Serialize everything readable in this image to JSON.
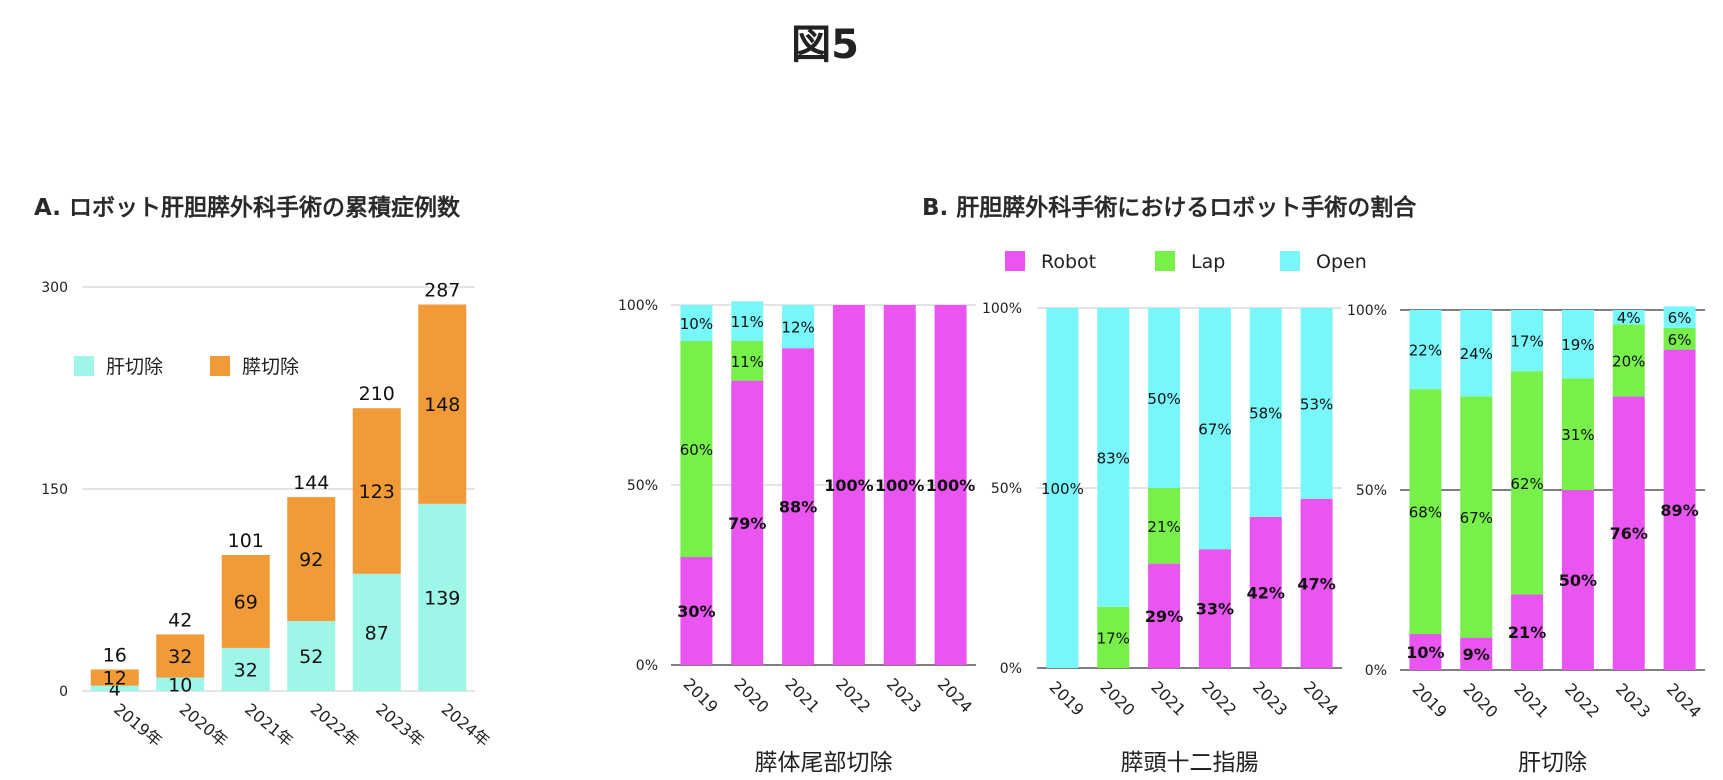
{
  "figure_title": "図5",
  "panel_a_title": "A. ロボット肝胆膵外科手術の累積症例数",
  "panel_b_title": "B. 肝胆膵外科手術におけるロボット手術の割合",
  "colors": {
    "liver": "#9ef6e8",
    "pancreas": "#f09a38",
    "robot": "#ea55f2",
    "lap": "#77f04a",
    "open": "#78f7fa"
  },
  "chart_data": [
    {
      "type": "bar",
      "stacked": true,
      "categories": [
        "2019年",
        "2020年",
        "2021年",
        "2022年",
        "2023年",
        "2024年"
      ],
      "series": [
        {
          "name": "肝切除",
          "values": [
            4,
            10,
            32,
            52,
            87,
            139
          ]
        },
        {
          "name": "膵切除",
          "values": [
            12,
            32,
            69,
            92,
            123,
            148
          ]
        }
      ],
      "totals": [
        16,
        42,
        101,
        144,
        210,
        287
      ],
      "yticks": [
        "0",
        "150",
        "300"
      ],
      "ylim": [
        0,
        300
      ],
      "legend_position": "top-left",
      "grid": true
    },
    {
      "type": "bar",
      "stacked": true,
      "title": "膵体尾部切除",
      "categories": [
        "2019",
        "2020",
        "2021",
        "2022",
        "2023",
        "2024"
      ],
      "series": [
        {
          "name": "Robot",
          "values": [
            30,
            79,
            88,
            100,
            100,
            100
          ],
          "labels": [
            "30%",
            "79%",
            "88%",
            "100%",
            "100%",
            "100%"
          ]
        },
        {
          "name": "Lap",
          "values": [
            60,
            11,
            0,
            0,
            0,
            0
          ],
          "labels": [
            "60%",
            "11%",
            "",
            "",
            "",
            ""
          ]
        },
        {
          "name": "Open",
          "values": [
            10,
            11,
            12,
            0,
            0,
            0
          ],
          "labels": [
            "10%",
            "11%",
            "12%",
            "",
            "",
            ""
          ]
        }
      ],
      "yticks": [
        "0%",
        "50%",
        "100%"
      ],
      "ylim": [
        0,
        100
      ]
    },
    {
      "type": "bar",
      "stacked": true,
      "title": "膵頭十二指腸",
      "categories": [
        "2019",
        "2020",
        "2021",
        "2022",
        "2023",
        "2024"
      ],
      "series": [
        {
          "name": "Robot",
          "values": [
            0,
            0,
            29,
            33,
            42,
            47
          ],
          "labels": [
            "",
            "",
            "29%",
            "33%",
            "42%",
            "47%"
          ]
        },
        {
          "name": "Lap",
          "values": [
            0,
            17,
            21,
            0,
            0,
            0
          ],
          "labels": [
            "",
            "17%",
            "21%",
            "",
            "",
            ""
          ]
        },
        {
          "name": "Open",
          "values": [
            100,
            83,
            50,
            67,
            58,
            53
          ],
          "labels": [
            "100%",
            "83%",
            "50%",
            "67%",
            "58%",
            "53%"
          ]
        }
      ],
      "yticks": [
        "0%",
        "50%",
        "100%"
      ],
      "ylim": [
        0,
        100
      ]
    },
    {
      "type": "bar",
      "stacked": true,
      "title": "肝切除",
      "categories": [
        "2019",
        "2020",
        "2021",
        "2022",
        "2023",
        "2024"
      ],
      "series": [
        {
          "name": "Robot",
          "values": [
            10,
            9,
            21,
            50,
            76,
            89
          ],
          "labels": [
            "10%",
            "9%",
            "21%",
            "50%",
            "76%",
            "89%"
          ]
        },
        {
          "name": "Lap",
          "values": [
            68,
            67,
            62,
            31,
            20,
            6
          ],
          "labels": [
            "68%",
            "67%",
            "62%",
            "31%",
            "20%",
            "6%"
          ]
        },
        {
          "name": "Open",
          "values": [
            22,
            24,
            17,
            19,
            4,
            6
          ],
          "labels": [
            "22%",
            "24%",
            "17%",
            "19%",
            "4%",
            "6%"
          ]
        }
      ],
      "yticks": [
        "0%",
        "50%",
        "100%"
      ],
      "ylim": [
        0,
        100
      ]
    }
  ],
  "legend_b": [
    "Robot",
    "Lap",
    "Open"
  ]
}
